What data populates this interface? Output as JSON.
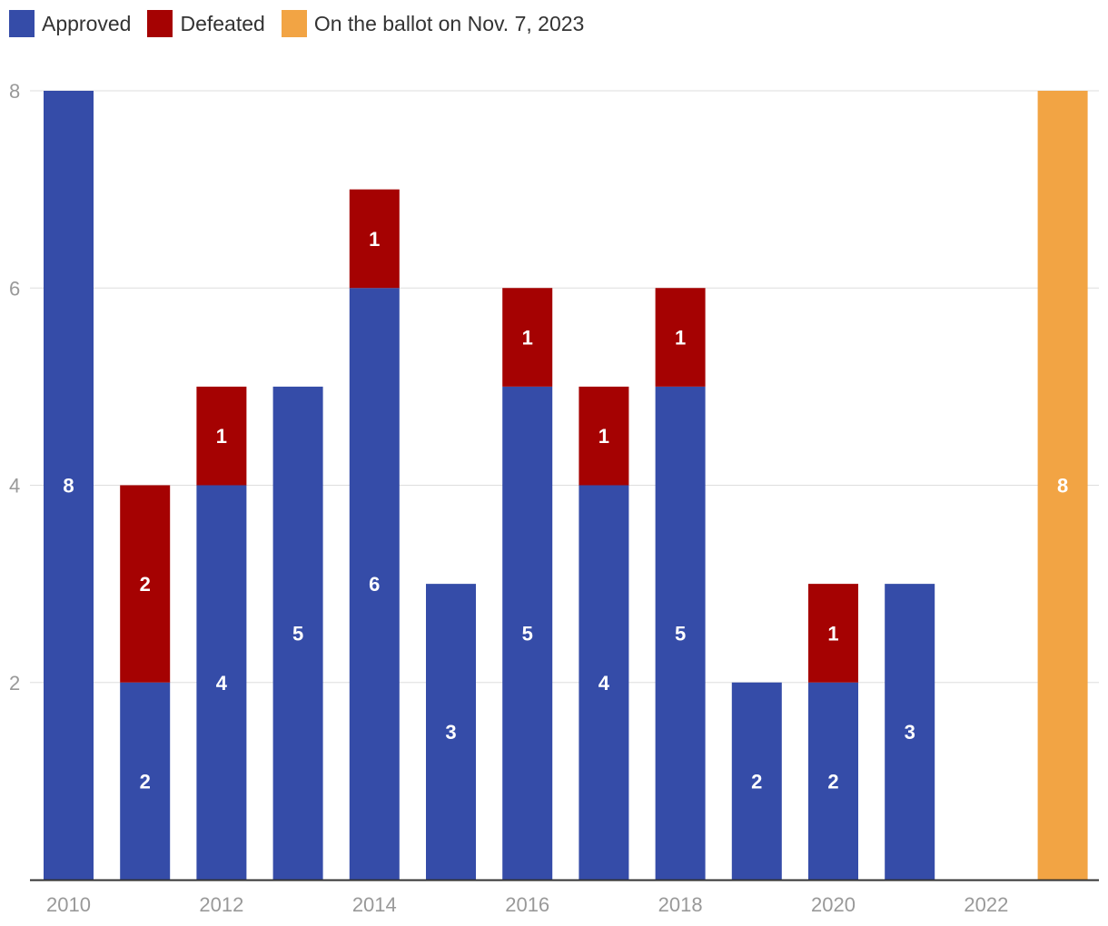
{
  "colors": {
    "approved": "#354ca8",
    "defeated": "#a50202",
    "ballot": "#f2a444",
    "grid": "#dddddd",
    "tick_text": "#999999",
    "axis": "#333333",
    "label_text": "#ffffff"
  },
  "legend": [
    {
      "key": "approved",
      "label": "Approved"
    },
    {
      "key": "defeated",
      "label": "Defeated"
    },
    {
      "key": "ballot",
      "label": "On the ballot on Nov. 7, 2023"
    }
  ],
  "chart_data": {
    "type": "bar",
    "stacked": true,
    "title": "",
    "xlabel": "",
    "ylabel": "",
    "ylim": [
      0,
      8
    ],
    "yticks": [
      2,
      4,
      6,
      8
    ],
    "categories": [
      "2010",
      "2011",
      "2012",
      "2013",
      "2014",
      "2015",
      "2016",
      "2017",
      "2018",
      "2019",
      "2020",
      "2021",
      "2022",
      "2023"
    ],
    "xtick_labels": [
      "2010",
      "",
      "2012",
      "",
      "2014",
      "",
      "2016",
      "",
      "2018",
      "",
      "2020",
      "",
      "2022",
      ""
    ],
    "series": [
      {
        "name": "Approved",
        "key": "approved",
        "values": [
          8,
          2,
          4,
          5,
          6,
          3,
          5,
          4,
          5,
          2,
          2,
          3,
          0,
          0
        ]
      },
      {
        "name": "Defeated",
        "key": "defeated",
        "values": [
          0,
          2,
          1,
          0,
          1,
          0,
          1,
          1,
          1,
          0,
          1,
          0,
          0,
          0
        ]
      },
      {
        "name": "On the ballot on Nov. 7, 2023",
        "key": "ballot",
        "values": [
          0,
          0,
          0,
          0,
          0,
          0,
          0,
          0,
          0,
          0,
          0,
          0,
          0,
          8
        ]
      }
    ],
    "data_labels": true,
    "grid": true,
    "legend_position": "top-left"
  }
}
